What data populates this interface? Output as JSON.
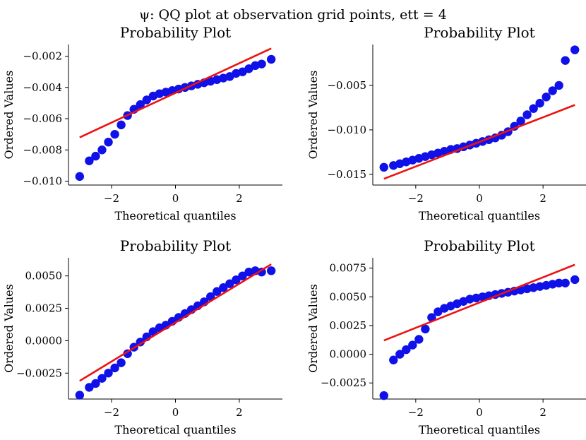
{
  "figure": {
    "suptitle": "ψ: QQ plot at observation grid points, ett = 4"
  },
  "colors": {
    "points": "#1010e8",
    "fit_line": "#ee1111"
  },
  "chart_data": [
    {
      "type": "scatter",
      "title": "Probability Plot",
      "xlabel": "Theoretical quantiles",
      "ylabel": "Ordered Values",
      "xlim": [
        -3.35,
        3.35
      ],
      "ylim": [
        -0.01025,
        -0.00125
      ],
      "xticks": [
        -2,
        0,
        2
      ],
      "xtick_labels": [
        "−2",
        "0",
        "2"
      ],
      "yticks": [
        -0.002,
        -0.004,
        -0.006,
        -0.008,
        -0.01
      ],
      "ytick_labels": [
        "−0.002",
        "−0.004",
        "−0.006",
        "−0.008",
        "−0.010"
      ],
      "fit_line": {
        "x": [
          -3.0,
          3.0
        ],
        "y": [
          -0.0072,
          -0.0015
        ]
      },
      "series": [
        {
          "x": [
            -3.0,
            -2.7,
            -2.5,
            -2.3,
            -2.1,
            -1.9,
            -1.7,
            -1.5,
            -1.3,
            -1.1,
            -0.9,
            -0.7,
            -0.5,
            -0.3,
            -0.1,
            0.1,
            0.3,
            0.5,
            0.7,
            0.9,
            1.1,
            1.3,
            1.5,
            1.7,
            1.9,
            2.1,
            2.3,
            2.5,
            2.7,
            3.0
          ],
          "y": [
            -0.0097,
            -0.0087,
            -0.0084,
            -0.008,
            -0.0075,
            -0.007,
            -0.0064,
            -0.0058,
            -0.0054,
            -0.0051,
            -0.0048,
            -0.00455,
            -0.0044,
            -0.0043,
            -0.0042,
            -0.0041,
            -0.004,
            -0.0039,
            -0.0038,
            -0.0037,
            -0.0036,
            -0.0035,
            -0.0034,
            -0.0033,
            -0.0031,
            -0.003,
            -0.0028,
            -0.0026,
            -0.0025,
            -0.0022
          ]
        }
      ]
    },
    {
      "type": "scatter",
      "title": "Probability Plot",
      "xlabel": "Theoretical quantiles",
      "ylabel": "Ordered Values",
      "xlim": [
        -3.35,
        3.35
      ],
      "ylim": [
        -0.0162,
        -0.0004
      ],
      "xticks": [
        -2,
        0,
        2
      ],
      "xtick_labels": [
        "−2",
        "0",
        "2"
      ],
      "yticks": [
        -0.005,
        -0.01,
        -0.015
      ],
      "ytick_labels": [
        "−0.005",
        "−0.010",
        "−0.015"
      ],
      "fit_line": {
        "x": [
          -3.0,
          3.0
        ],
        "y": [
          -0.0155,
          -0.0072
        ]
      },
      "series": [
        {
          "x": [
            -3.0,
            -2.7,
            -2.5,
            -2.3,
            -2.1,
            -1.9,
            -1.7,
            -1.5,
            -1.3,
            -1.1,
            -0.9,
            -0.7,
            -0.5,
            -0.3,
            -0.1,
            0.1,
            0.3,
            0.5,
            0.7,
            0.9,
            1.1,
            1.3,
            1.5,
            1.7,
            1.9,
            2.1,
            2.3,
            2.5,
            2.7,
            3.0
          ],
          "y": [
            -0.0142,
            -0.014,
            -0.0138,
            -0.0136,
            -0.0134,
            -0.0132,
            -0.013,
            -0.0128,
            -0.0126,
            -0.0124,
            -0.0122,
            -0.0121,
            -0.0119,
            -0.0117,
            -0.0115,
            -0.0113,
            -0.0111,
            -0.0109,
            -0.0106,
            -0.0102,
            -0.0096,
            -0.009,
            -0.0083,
            -0.0076,
            -0.007,
            -0.0063,
            -0.0056,
            -0.005,
            -0.0022,
            -0.001
          ]
        }
      ]
    },
    {
      "type": "scatter",
      "title": "Probability Plot",
      "xlabel": "Theoretical quantiles",
      "ylabel": "Ordered Values",
      "xlim": [
        -3.35,
        3.35
      ],
      "ylim": [
        -0.0045,
        0.0064
      ],
      "xticks": [
        -2,
        0,
        2
      ],
      "xtick_labels": [
        "−2",
        "0",
        "2"
      ],
      "yticks": [
        0.005,
        0.0025,
        0.0,
        -0.0025
      ],
      "ytick_labels": [
        "0.0050",
        "0.0025",
        "0.0000",
        "−0.0025"
      ],
      "fit_line": {
        "x": [
          -3.0,
          3.0
        ],
        "y": [
          -0.0031,
          0.0059
        ]
      },
      "series": [
        {
          "x": [
            -3.0,
            -2.7,
            -2.5,
            -2.3,
            -2.1,
            -1.9,
            -1.7,
            -1.5,
            -1.3,
            -1.1,
            -0.9,
            -0.7,
            -0.5,
            -0.3,
            -0.1,
            0.1,
            0.3,
            0.5,
            0.7,
            0.9,
            1.1,
            1.3,
            1.5,
            1.7,
            1.9,
            2.1,
            2.3,
            2.5,
            2.7,
            3.0
          ],
          "y": [
            -0.0042,
            -0.0036,
            -0.0033,
            -0.0029,
            -0.0025,
            -0.0021,
            -0.0017,
            -0.001,
            -0.0005,
            -0.0001,
            0.0003,
            0.0007,
            0.001,
            0.0012,
            0.0015,
            0.0018,
            0.0021,
            0.0024,
            0.0027,
            0.003,
            0.0034,
            0.0038,
            0.0041,
            0.0044,
            0.0047,
            0.005,
            0.0053,
            0.0054,
            0.0053,
            0.0054
          ]
        }
      ]
    },
    {
      "type": "scatter",
      "title": "Probability Plot",
      "xlabel": "Theoretical quantiles",
      "ylabel": "Ordered Values",
      "xlim": [
        -3.35,
        3.35
      ],
      "ylim": [
        -0.0039,
        0.0084
      ],
      "xticks": [
        -2,
        0,
        2
      ],
      "xtick_labels": [
        "−2",
        "0",
        "2"
      ],
      "yticks": [
        0.0075,
        0.005,
        0.0025,
        0.0,
        -0.0025
      ],
      "ytick_labels": [
        "0.0075",
        "0.0050",
        "0.0025",
        "0.0000",
        "−0.0025"
      ],
      "fit_line": {
        "x": [
          -3.0,
          3.0
        ],
        "y": [
          0.0012,
          0.0078
        ]
      },
      "series": [
        {
          "x": [
            -3.0,
            -2.7,
            -2.5,
            -2.3,
            -2.1,
            -1.9,
            -1.7,
            -1.5,
            -1.3,
            -1.1,
            -0.9,
            -0.7,
            -0.5,
            -0.3,
            -0.1,
            0.1,
            0.3,
            0.5,
            0.7,
            0.9,
            1.1,
            1.3,
            1.5,
            1.7,
            1.9,
            2.1,
            2.3,
            2.5,
            2.7,
            3.0
          ],
          "y": [
            -0.0036,
            -0.0005,
            0.0,
            0.0004,
            0.0008,
            0.0013,
            0.0022,
            0.0032,
            0.0037,
            0.004,
            0.0042,
            0.0044,
            0.0046,
            0.0048,
            0.0049,
            0.005,
            0.0051,
            0.0052,
            0.0053,
            0.0054,
            0.0055,
            0.0056,
            0.0057,
            0.0058,
            0.0059,
            0.006,
            0.0061,
            0.0062,
            0.0062,
            0.0065
          ]
        }
      ]
    }
  ]
}
